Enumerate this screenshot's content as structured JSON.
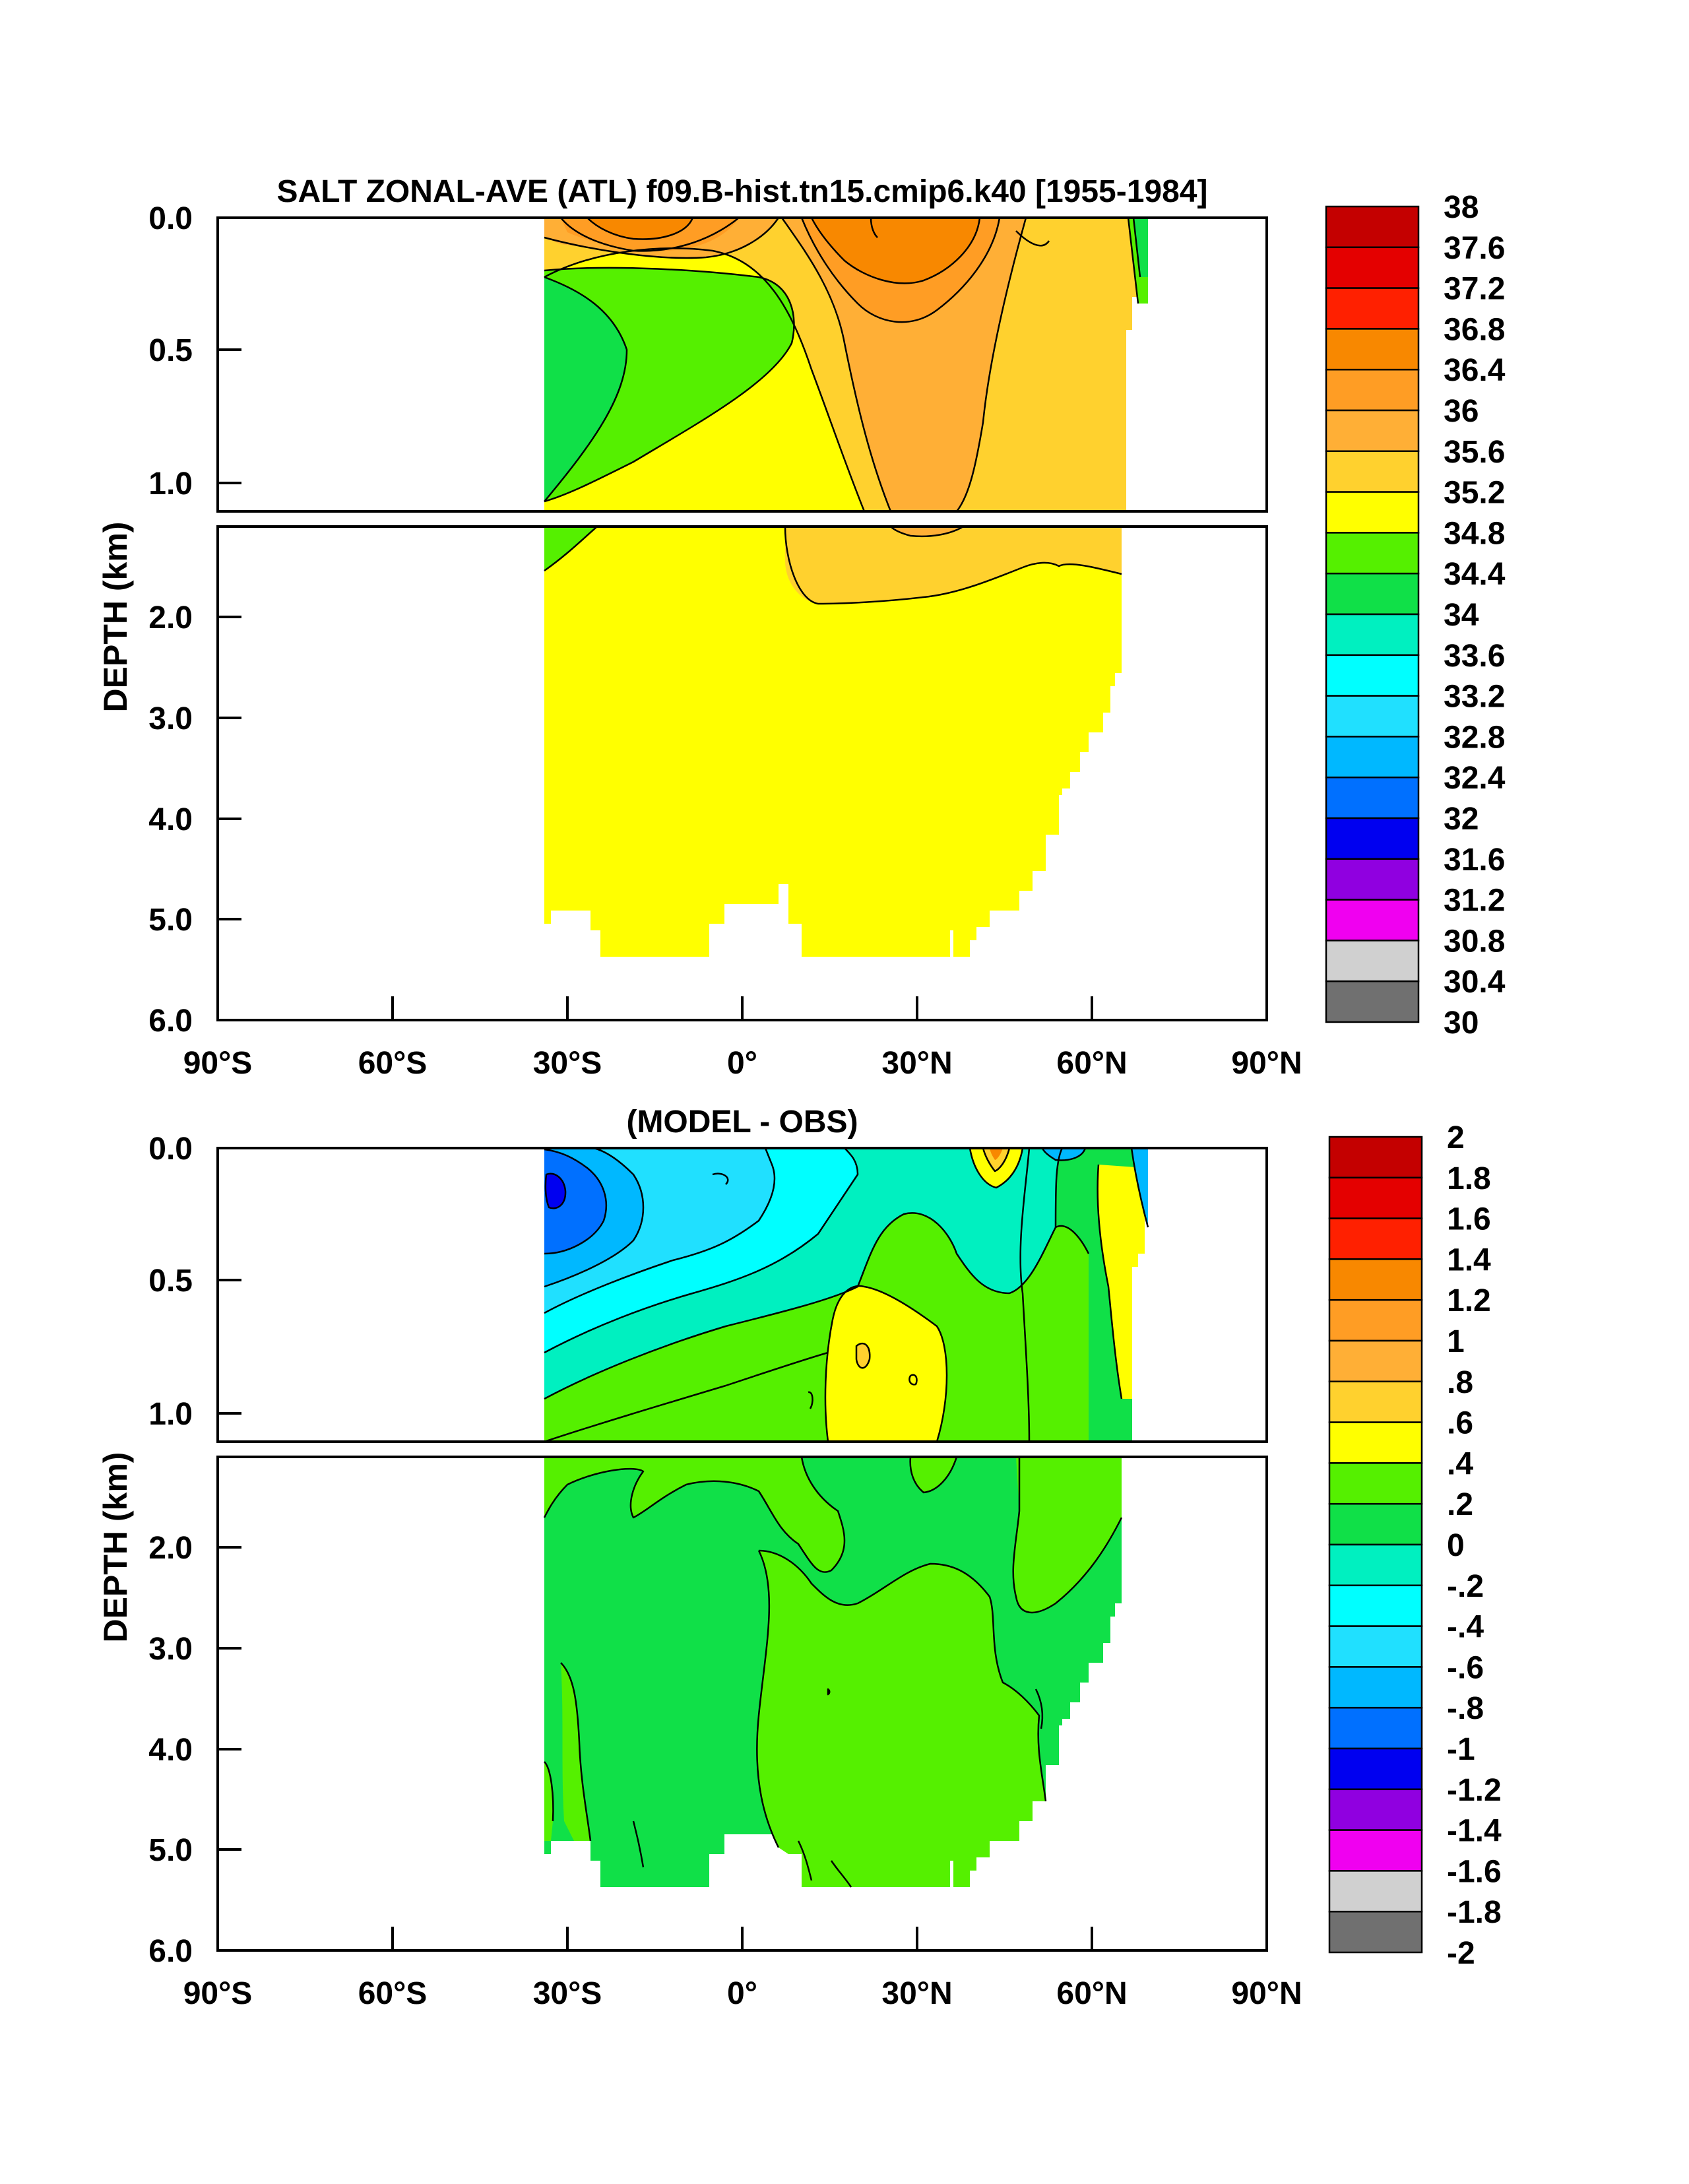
{
  "panels": [
    {
      "title": "SALT ZONAL-AVE (ATL) f09.B-hist.tn15.cmip6.k40 [1955-1984]",
      "ylabel": "DEPTH (km)",
      "y_ticks": [
        "0.0",
        "0.5",
        "1.0",
        "2.0",
        "3.0",
        "4.0",
        "5.0",
        "6.0"
      ],
      "x_ticks": [
        "90°S",
        "60°S",
        "30°S",
        "0°",
        "30°N",
        "60°N",
        "90°N"
      ],
      "colorbar_labels": [
        "38",
        "37.6",
        "37.2",
        "36.8",
        "36.4",
        "36",
        "35.6",
        "35.2",
        "34.8",
        "34.4",
        "34",
        "33.6",
        "33.2",
        "32.8",
        "32.4",
        "32",
        "31.6",
        "31.2",
        "30.8",
        "30.4",
        "30"
      ],
      "colorbar_colors": [
        "#c40000",
        "#e40000",
        "#ff2000",
        "#f88800",
        "#ff9d24",
        "#ffaf36",
        "#ffd12e",
        "#ffff00",
        "#55f000",
        "#10e048",
        "#00f0c0",
        "#00ffff",
        "#20e0ff",
        "#00b8ff",
        "#0070ff",
        "#0000f0",
        "#9000e0",
        "#f000f0",
        "#d0d0d0",
        "#707070"
      ]
    },
    {
      "title": "(MODEL - OBS)",
      "ylabel": "DEPTH (km)",
      "y_ticks": [
        "0.0",
        "0.5",
        "1.0",
        "2.0",
        "3.0",
        "4.0",
        "5.0",
        "6.0"
      ],
      "x_ticks": [
        "90°S",
        "60°S",
        "30°S",
        "0°",
        "30°N",
        "60°N",
        "90°N"
      ],
      "colorbar_labels": [
        "2",
        "1.8",
        "1.6",
        "1.4",
        "1.2",
        "1",
        ".8",
        ".6",
        ".4",
        ".2",
        "0",
        "-.2",
        "-.4",
        "-.6",
        "-.8",
        "-1",
        "-1.2",
        "-1.4",
        "-1.6",
        "-1.8",
        "-2"
      ],
      "colorbar_colors": [
        "#c40000",
        "#e40000",
        "#ff2000",
        "#f88800",
        "#ff9d24",
        "#ffaf36",
        "#ffd12e",
        "#ffff00",
        "#55f000",
        "#10e048",
        "#00f0c0",
        "#00ffff",
        "#20e0ff",
        "#00b8ff",
        "#0070ff",
        "#0000f0",
        "#9000e0",
        "#f000f0",
        "#d0d0d0",
        "#707070"
      ]
    }
  ],
  "chart_data": [
    {
      "type": "heatmap",
      "title": "SALT ZONAL-AVE (ATL) f09.B-hist.tn15.cmip6.k40 [1955-1984]",
      "xlabel": "",
      "ylabel": "DEPTH (km)",
      "x_range_deg_lat": [
        -90,
        90
      ],
      "y_range_km": [
        0,
        6
      ],
      "y_reversed": true,
      "data_extent_lat": [
        -34,
        67
      ],
      "levels": [
        30,
        30.4,
        30.8,
        31.2,
        31.6,
        32,
        32.4,
        32.8,
        33.2,
        33.6,
        34,
        34.4,
        34.8,
        35.2,
        35.6,
        36,
        36.4,
        36.8,
        37.2,
        37.6,
        38
      ],
      "regions": [
        {
          "desc": "deep water below ~1.5 km",
          "lat": [
            -34,
            65
          ],
          "depth_km": [
            1.6,
            5.4
          ],
          "range": [
            34.8,
            35.2
          ]
        },
        {
          "desc": "southern intermediate water",
          "lat": [
            -34,
            -20
          ],
          "depth_km": [
            0.2,
            1.6
          ],
          "range": [
            34.4,
            34.8
          ]
        },
        {
          "desc": "subtropical north maximum",
          "lat": [
            20,
            32
          ],
          "depth_km": [
            0.0,
            0.3
          ],
          "range": [
            36.4,
            36.8
          ]
        },
        {
          "desc": "subtropical south surface maximum",
          "lat": [
            -24,
            -14
          ],
          "depth_km": [
            0.0,
            0.1
          ],
          "range": [
            36.4,
            36.8
          ]
        },
        {
          "desc": "northern subsurface",
          "lat": [
            8,
            40
          ],
          "depth_km": [
            0.3,
            1.6
          ],
          "range": [
            35.6,
            36.0
          ]
        }
      ]
    },
    {
      "type": "heatmap",
      "title": "(MODEL - OBS)",
      "xlabel": "",
      "ylabel": "DEPTH (km)",
      "x_range_deg_lat": [
        -90,
        90
      ],
      "y_range_km": [
        0,
        6
      ],
      "y_reversed": true,
      "data_extent_lat": [
        -34,
        67
      ],
      "levels": [
        -2,
        -1.8,
        -1.6,
        -1.4,
        -1.2,
        -1,
        -0.8,
        -0.6,
        -0.4,
        -0.2,
        0,
        0.2,
        0.4,
        0.6,
        0.8,
        1,
        1.2,
        1.4,
        1.6,
        1.8,
        2
      ],
      "regions": [
        {
          "desc": "deep water",
          "lat": [
            -34,
            65
          ],
          "depth_km": [
            1.3,
            5.4
          ],
          "range": [
            0,
            0.2
          ]
        },
        {
          "desc": "southern upper minimum",
          "lat": [
            -34,
            -30
          ],
          "depth_km": [
            0.0,
            0.2
          ],
          "range": [
            -1.2,
            -1.0
          ]
        },
        {
          "desc": "southern upper ocean",
          "lat": [
            -34,
            0
          ],
          "depth_km": [
            0.0,
            0.8
          ],
          "range": [
            -0.8,
            -0.2
          ]
        },
        {
          "desc": "northern subsurface positive",
          "lat": [
            9,
            24
          ],
          "depth_km": [
            0.6,
            1.4
          ],
          "range": [
            0.4,
            0.6
          ]
        },
        {
          "desc": "high-latitude north band",
          "lat": [
            58,
            65
          ],
          "depth_km": [
            0.1,
            1.0
          ],
          "range": [
            0.4,
            0.6
          ]
        }
      ]
    }
  ]
}
